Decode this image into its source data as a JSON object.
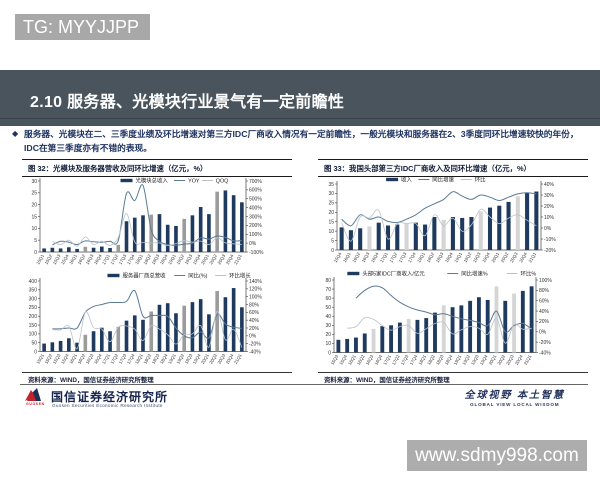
{
  "tg_badge": {
    "text": "TG: MYYJJPP",
    "bg": "#a8a8a8",
    "color": "#ffffff"
  },
  "title_bar": {
    "number": "2.10",
    "text": "服务器、光模块行业景气有一定前瞻性",
    "bg": "#4a545c",
    "color": "#ffffff"
  },
  "bullet": {
    "marker": "◆",
    "lines": [
      "服务器、光模块在二、三季度业绩及环比增速对第三方IDC厂商收入情况有一定前瞻性，一般光模块和服务器在2、3季度同环比增速较快的年份，",
      "IDC在第三季度亦有不错的表现。"
    ],
    "color": "#1f3360"
  },
  "panels": [
    {
      "title": "图 32：光模块及服务器营收及同环比增速（亿元，%）",
      "source": "资料来源：WIND，国信证券经济研究所整理"
    },
    {
      "title": "图 33：我国头部第三方IDC厂商收入及同环比增速（亿元，%）",
      "source": "资料来源：WIND，国信证券经济研究所整理"
    }
  ],
  "footer": {
    "institute_cn": "国信证券经济研究所",
    "institute_en": "Guosen Securities Economic Research Institute",
    "logo_text": "GUOSEN",
    "slogan_cn": "全球视野  本土智慧",
    "slogan_en": "GLOBAL VIEW   LOCAL WISDOM"
  },
  "watermark": {
    "text": "www.sdmy998.com",
    "bg": "#adadad",
    "color": "#ffffff"
  },
  "colors": {
    "bar_navy": "#1e3a5f",
    "bar_gray_left": "#9b9b9b",
    "bar_gray_right": "#d5d5d5",
    "line_dark": "#5a7a96",
    "line_light": "#b9c2ca",
    "axis": "#444444"
  },
  "chart_data": [
    {
      "type": "bar",
      "title": "光模块总收入及同环比增速",
      "categories": [
        "15Q1",
        "15Q2",
        "15Q3",
        "15Q4",
        "16Q1",
        "16Q2",
        "16Q3",
        "16Q4",
        "17Q1",
        "17Q2",
        "17Q3",
        "17Q4",
        "18Q1",
        "18Q2",
        "18Q3",
        "18Q4",
        "19Q1",
        "19Q2",
        "19Q3",
        "19Q4",
        "20Q1",
        "20Q2",
        "20Q3",
        "20Q4",
        "21Q1"
      ],
      "bars": {
        "name": "光模块总收入",
        "values": [
          1.5,
          1.8,
          1.5,
          2.0,
          1.3,
          2.2,
          1.8,
          2.3,
          1.7,
          3.0,
          13.0,
          14.5,
          15.5,
          15.8,
          16.0,
          11.5,
          11.0,
          14.0,
          15.5,
          19.0,
          16.0,
          25.5,
          26.0,
          24.0,
          21.0
        ],
        "highlight_indices": [
          5,
          9,
          13,
          17,
          21
        ]
      },
      "series": [
        {
          "name": "YOY",
          "axis": "right",
          "values": [
            null,
            -20,
            20,
            10,
            -15,
            25,
            15,
            10,
            20,
            30,
            560,
            480,
            650,
            150,
            20,
            -15,
            -25,
            -10,
            0,
            60,
            45,
            80,
            65,
            25,
            30
          ]
        },
        {
          "name": "QOQ",
          "axis": "right",
          "values": [
            null,
            20,
            -17,
            33,
            -35,
            69,
            -18,
            22,
            -26,
            65,
            333,
            12,
            7,
            2,
            1,
            -28,
            -4,
            27,
            11,
            23,
            -16,
            59,
            2,
            -8,
            -14
          ]
        }
      ],
      "left_axis": {
        "min": 0,
        "max": 30,
        "step": 5
      },
      "right_axis": {
        "min": -100,
        "max": 700,
        "step": 100,
        "suffix": "%"
      }
    },
    {
      "type": "bar",
      "title": "服务器厂商总营收及同环比增速",
      "categories": [
        "15Q1",
        "15Q2",
        "15Q3",
        "15Q4",
        "16Q1",
        "16Q2",
        "16Q3",
        "16Q4",
        "17Q1",
        "17Q2",
        "17Q3",
        "17Q4",
        "18Q1",
        "18Q2",
        "18Q3",
        "18Q4",
        "19Q1",
        "19Q2",
        "19Q3",
        "19Q4",
        "20Q1",
        "20Q2",
        "20Q3",
        "20Q4",
        "21Q1"
      ],
      "bars": {
        "name": "服务器厂商总营收",
        "values": [
          45,
          52,
          60,
          75,
          50,
          95,
          115,
          135,
          115,
          140,
          175,
          205,
          180,
          227,
          265,
          274,
          217,
          260,
          280,
          297,
          211,
          343,
          308,
          360,
          251
        ],
        "highlight_indices": [
          5,
          9,
          13,
          17,
          21
        ]
      },
      "series": [
        {
          "name": "同比(%)",
          "axis": "right",
          "values": [
            null,
            18,
            18,
            20,
            20,
            60,
            75,
            80,
            85,
            85,
            88,
            115,
            50,
            52,
            52,
            50,
            20,
            0,
            -5,
            10,
            -5,
            55,
            30,
            22,
            19
          ]
        },
        {
          "name": "环比增长",
          "axis": "right",
          "values": [
            null,
            16,
            15,
            25,
            -33,
            60,
            21,
            17,
            -15,
            22,
            25,
            17,
            -12,
            26,
            17,
            3,
            -21,
            3,
            5,
            26,
            -29,
            63,
            -10,
            17,
            -30
          ]
        }
      ],
      "left_axis": {
        "min": 0,
        "max": 400,
        "step": 50
      },
      "right_axis": {
        "min": -40,
        "max": 140,
        "step": 20,
        "suffix": "%"
      }
    },
    {
      "type": "bar",
      "title": "我国头部第三方IDC厂商收入及同环比增速",
      "categories": [
        "15Q4",
        "16Q1",
        "16Q2",
        "16Q3",
        "16Q4",
        "17Q1",
        "17Q2",
        "17Q3",
        "17Q4",
        "18Q1",
        "18Q2",
        "18Q3",
        "18Q4",
        "19Q1",
        "19Q2",
        "19Q3",
        "19Q4",
        "20Q1",
        "20Q2",
        "20Q3",
        "20Q4",
        "21Q1"
      ],
      "bars": {
        "name": "收入",
        "values": [
          12,
          10.5,
          11.5,
          12.5,
          14.5,
          13,
          13.5,
          14,
          14.5,
          13.5,
          17.5,
          16,
          17.5,
          17,
          17.5,
          20.5,
          22.5,
          23.5,
          25.5,
          28.5,
          30.5,
          31
        ],
        "highlight_indices": [
          3,
          7,
          11,
          15,
          19
        ]
      },
      "series": [
        {
          "name": "同比增速",
          "axis": "right",
          "values": [
            8,
            2,
            12,
            8,
            10,
            6,
            5,
            8,
            12,
            18,
            22,
            26,
            33,
            29,
            26,
            30,
            28,
            25,
            28,
            31,
            32,
            31
          ]
        },
        {
          "name": "环比",
          "axis": "right",
          "values": [
            5,
            -12,
            10,
            9,
            16,
            -10,
            4,
            4,
            4,
            -7,
            12,
            2,
            9,
            -3,
            3,
            17,
            10,
            4,
            9,
            12,
            7,
            2
          ]
        }
      ],
      "left_axis": {
        "min": 0,
        "max": 35,
        "step": 5
      },
      "right_axis": {
        "min": -20,
        "max": 40,
        "step": 10,
        "suffix": "%"
      }
    },
    {
      "type": "bar",
      "title": "头部5家IDC厂商收入及同环比增速",
      "categories": [
        "15Q3",
        "15Q4",
        "16Q1",
        "16Q2",
        "16Q3",
        "16Q4",
        "17Q1",
        "17Q2",
        "17Q3",
        "17Q4",
        "18Q1",
        "18Q2",
        "18Q3",
        "18Q4",
        "19Q1",
        "19Q2",
        "19Q3",
        "19Q4",
        "20Q1",
        "20Q2",
        "20Q3",
        "20Q4",
        "21Q1"
      ],
      "bars": {
        "name": "头部5家IDC厂商收入/亿元",
        "values": [
          14,
          15,
          16.5,
          21,
          26,
          29,
          30,
          33,
          37,
          36,
          38,
          44,
          52,
          50,
          52,
          57,
          61,
          58,
          73,
          57,
          65,
          68,
          73
        ],
        "highlight_indices": [
          4,
          8,
          12,
          18,
          20
        ]
      },
      "series": [
        {
          "name": "同比增速%",
          "axis": "right",
          "values": [
            null,
            null,
            65,
            80,
            88,
            85,
            70,
            57,
            48,
            42,
            38,
            33,
            35,
            30,
            25,
            22,
            18,
            12,
            40,
            0,
            12,
            16,
            5
          ]
        },
        {
          "name": "环比%",
          "axis": "right",
          "values": [
            null,
            7,
            10,
            27,
            24,
            12,
            3,
            10,
            12,
            -3,
            6,
            16,
            18,
            -4,
            4,
            10,
            7,
            -5,
            26,
            -22,
            14,
            5,
            7
          ]
        }
      ],
      "left_axis": {
        "min": 0,
        "max": 80,
        "step": 10
      },
      "right_axis": {
        "min": -40,
        "max": 100,
        "step": 20,
        "suffix": "%"
      }
    }
  ]
}
